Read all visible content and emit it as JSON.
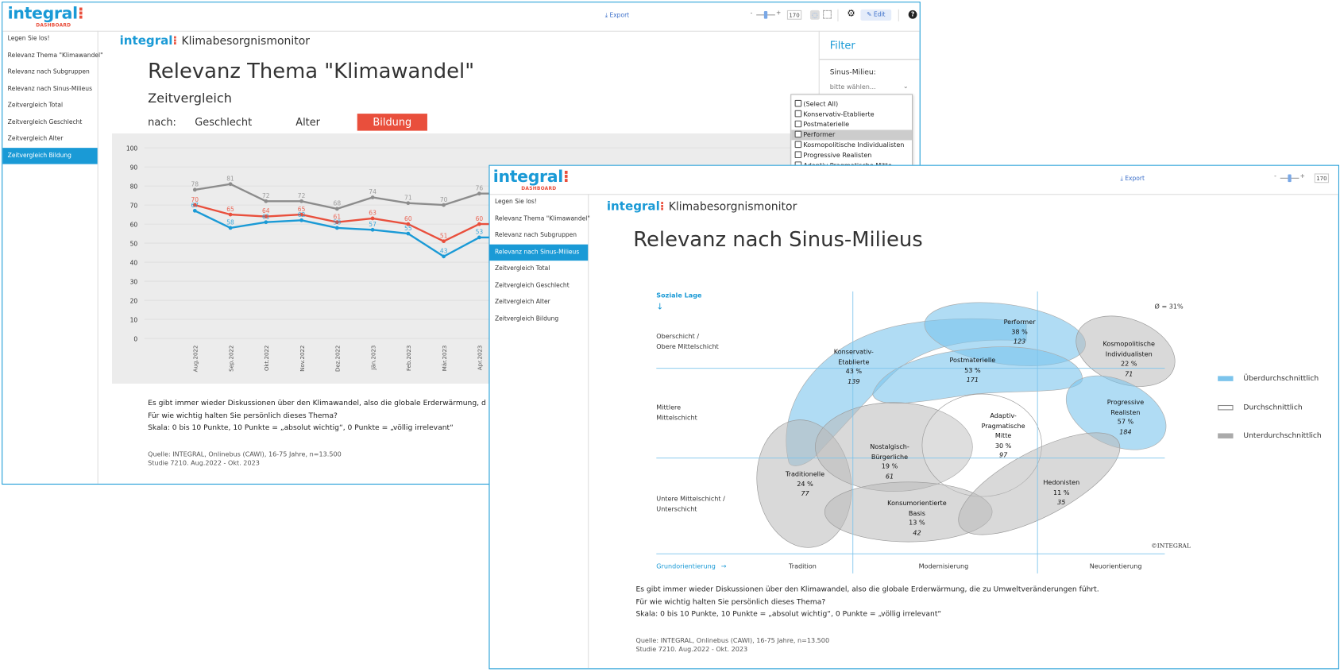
{
  "brand": {
    "logo": "integral",
    "logo_sub": "DASHBOARD",
    "app_title": "Klimabesorgnismonitor"
  },
  "back_window": {
    "toolbar": {
      "export": "Export",
      "zoom_value": "170",
      "edit": "Edit",
      "slider_minus": "-",
      "slider_plus": "+"
    },
    "sidebar": {
      "items": [
        "Legen Sie los!",
        "Relevanz Thema \"Klimawandel\"",
        "Relevanz nach Subgruppen",
        "Relevanz nach Sinus-Milieus",
        "Zeitvergleich Total",
        "Zeitvergleich Geschlecht",
        "Zeitvergleich Alter",
        "Zeitvergleich Bildung"
      ],
      "active": 7
    },
    "title": "Relevanz Thema \"Klimawandel\"",
    "subtitle": "Zeitvergleich",
    "nach": {
      "label": "nach:",
      "options": [
        "Geschlecht",
        "Alter",
        "Bildung"
      ],
      "active": 2
    },
    "filter": {
      "title": "Filter",
      "field_label": "Sinus-Milieu:",
      "placeholder": "bitte wählen...",
      "options": [
        "(Select All)",
        "Konservativ-Etablierte",
        "Postmaterielle",
        "Performer",
        "Kosmopolitische Individualisten",
        "Progressive Realisten",
        "Adaptiv-Pragmatische Mitte"
      ],
      "highlighted": 3
    },
    "question": [
      "Es gibt immer wieder Diskussionen über den Klimawandel, also die globale Erderwärmung, d",
      "Für wie wichtig halten Sie persönlich dieses Thema?",
      "Skala: 0 bis 10 Punkte, 10 Punkte = „absolut wichtig“, 0 Punkte = „völlig irrelevant“"
    ],
    "source": [
      "Quelle: INTEGRAL, Onlinebus (CAWI), 16-75 Jahre, n=13.500",
      "Studie 7210. Aug.2022 - Okt. 2023"
    ]
  },
  "chart_data": {
    "type": "line",
    "categories": [
      "Aug.2022",
      "Sep.2022",
      "Okt.2022",
      "Nov.2022",
      "Dez.2022",
      "Jän.2023",
      "Feb.2023",
      "Mär.2023",
      "Apr.2023"
    ],
    "ylim": [
      0,
      100
    ],
    "yticks": [
      0,
      10,
      20,
      30,
      40,
      50,
      60,
      70,
      80,
      90,
      100
    ],
    "series": [
      {
        "name": "grey",
        "color": "#8c8c8c",
        "values": [
          78,
          81,
          72,
          72,
          68,
          74,
          71,
          70,
          76
        ]
      },
      {
        "name": "red",
        "color": "#e94f3c",
        "values": [
          70,
          65,
          64,
          65,
          61,
          63,
          60,
          51,
          60
        ]
      },
      {
        "name": "blue",
        "color": "#1a9ad6",
        "values": [
          67,
          58,
          61,
          62,
          58,
          57,
          55,
          43,
          53
        ]
      }
    ]
  },
  "front_window": {
    "toolbar": {
      "export": "Export",
      "zoom_value": "170",
      "slider_minus": "-",
      "slider_plus": "+"
    },
    "sidebar": {
      "items": [
        "Legen Sie los!",
        "Relevanz Thema \"Klimawandel\"",
        "Relevanz nach Subgruppen",
        "Relevanz nach Sinus-Milieus",
        "Zeitvergleich Total",
        "Zeitvergleich Geschlecht",
        "Zeitvergleich Alter",
        "Zeitvergleich Bildung"
      ],
      "active": 3
    },
    "title": "Relevanz nach Sinus-Milieus",
    "map": {
      "y_axis_title": "Soziale Lage",
      "y_arrow": "↓",
      "rows": [
        [
          "Oberschicht /",
          "Obere Mittelschicht"
        ],
        [
          "Mittlere",
          "Mittelschicht"
        ],
        [
          "Untere Mittelschicht /",
          "Unterschicht"
        ]
      ],
      "x_axis_title": "Grundorientierung",
      "x_arrow": "→",
      "columns": [
        "Tradition",
        "Modernisierung",
        "Neuorientierung"
      ],
      "average": "Ø = 31%",
      "copyright": "©INTEGRAL",
      "legend": [
        "Überdurchschnittlich",
        "Durchschnittlich",
        "Unterdurchschnittlich"
      ],
      "colors": {
        "above": "#7cc4ec",
        "average": "#ffffff",
        "below": "#b9b9b9",
        "line": "#7cc4ec",
        "accent": "#1a9ad6"
      },
      "milieus": [
        {
          "name": [
            "Performer"
          ],
          "pct": "38 %",
          "n": "123",
          "level": "above"
        },
        {
          "name": [
            "Kosmopolitische",
            "Individualisten"
          ],
          "pct": "22 %",
          "n": "71",
          "level": "below"
        },
        {
          "name": [
            "Konservativ-",
            "Etablierte"
          ],
          "pct": "43 %",
          "n": "139",
          "level": "above"
        },
        {
          "name": [
            "Postmaterielle"
          ],
          "pct": "53 %",
          "n": "171",
          "level": "above"
        },
        {
          "name": [
            "Progressive",
            "Realisten"
          ],
          "pct": "57 %",
          "n": "184",
          "level": "above"
        },
        {
          "name": [
            "Adaptiv-",
            "Pragmatische",
            "Mitte"
          ],
          "pct": "30 %",
          "n": "97",
          "level": "average"
        },
        {
          "name": [
            "Nostalgisch-",
            "Bürgerliche"
          ],
          "pct": "19 %",
          "n": "61",
          "level": "below"
        },
        {
          "name": [
            "Traditionelle"
          ],
          "pct": "24 %",
          "n": "77",
          "level": "below"
        },
        {
          "name": [
            "Hedonisten"
          ],
          "pct": "11 %",
          "n": "35",
          "level": "below"
        },
        {
          "name": [
            "Konsumorientierte",
            "Basis"
          ],
          "pct": "13 %",
          "n": "42",
          "level": "below"
        }
      ]
    },
    "question": [
      "Es gibt immer wieder Diskussionen über den Klimawandel, also die globale Erderwärmung, die zu Umweltveränderungen führt.",
      "Für wie wichtig halten Sie persönlich dieses Thema?",
      "Skala: 0 bis 10 Punkte, 10 Punkte = „absolut wichtig“, 0 Punkte = „völlig irrelevant“"
    ],
    "source": [
      "Quelle: INTEGRAL, Onlinebus (CAWI), 16-75 Jahre, n=13.500",
      "Studie 7210. Aug.2022 - Okt. 2023"
    ]
  }
}
